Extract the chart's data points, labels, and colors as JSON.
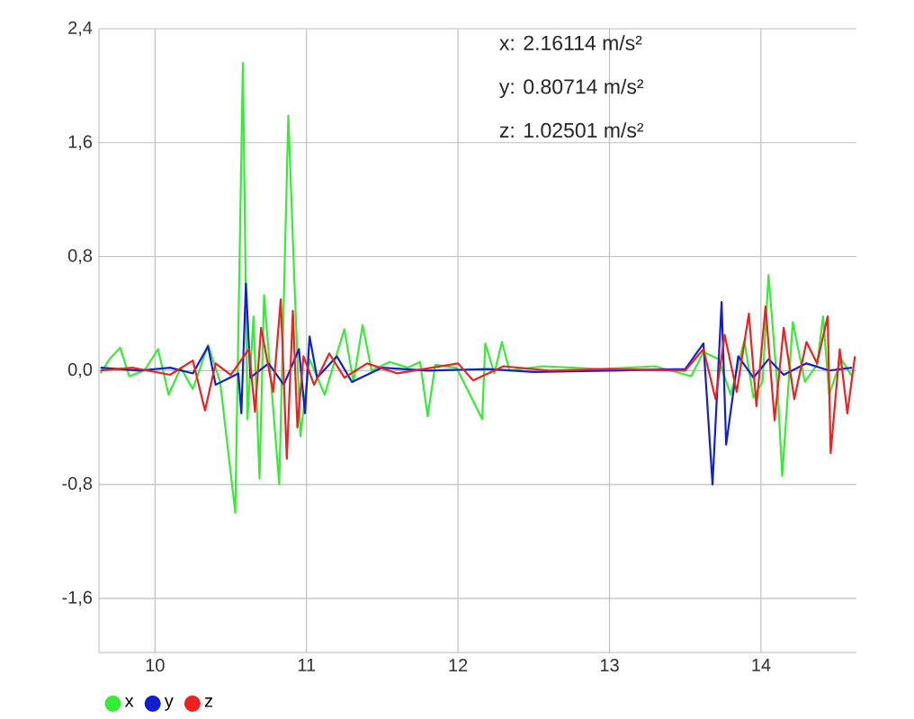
{
  "chart_data": {
    "type": "line",
    "annotations": [
      "x: 2.16114 m/s²",
      "y: 0.80714 m/s²",
      "z: 1.02501 m/s²"
    ],
    "xlim": [
      9.63,
      14.63
    ],
    "ylim": [
      -1.98,
      2.4
    ],
    "xticks": [
      10,
      11,
      12,
      13,
      14
    ],
    "yticks": [
      {
        "value": -1.6,
        "label": "-1,6"
      },
      {
        "value": -0.8,
        "label": "-0,8"
      },
      {
        "value": 0,
        "label": "0,0"
      },
      {
        "value": 0.8,
        "label": "0,8"
      },
      {
        "value": 1.6,
        "label": "1,6"
      },
      {
        "value": 2.4,
        "label": "2,4"
      }
    ],
    "grid": true,
    "legend": "bottom left",
    "series": [
      {
        "name": "x",
        "color": "#33ee33",
        "x": [
          9.64,
          9.7,
          9.77,
          9.83,
          9.93,
          10.02,
          10.09,
          10.17,
          10.25,
          10.35,
          10.43,
          10.53,
          10.58,
          10.61,
          10.65,
          10.69,
          10.72,
          10.76,
          10.82,
          10.88,
          10.92,
          10.96,
          11.02,
          11.12,
          11.19,
          11.25,
          11.31,
          11.37,
          11.43,
          11.55,
          11.67,
          11.75,
          11.8,
          11.85,
          11.99,
          12.16,
          12.18,
          12.24,
          12.29,
          12.34,
          12.56,
          12.95,
          13.3,
          13.54,
          13.62,
          13.72,
          13.8,
          13.89,
          13.95,
          14.01,
          14.05,
          14.11,
          14.14,
          14.21,
          14.29,
          14.37,
          14.41,
          14.45,
          14.53,
          14.6
        ],
        "values": [
          -0.02,
          0.08,
          0.16,
          -0.04,
          0,
          0.15,
          -0.17,
          0.02,
          -0.13,
          0.18,
          -0.08,
          -1.0,
          2.16,
          -0.34,
          0.38,
          -0.76,
          0.53,
          0,
          -0.8,
          1.79,
          0.63,
          -0.46,
          0.08,
          -0.17,
          0.08,
          0.29,
          -0.08,
          0.32,
          0,
          0.06,
          0.02,
          0.06,
          -0.32,
          0.04,
          0.02,
          -0.34,
          0.19,
          -0.02,
          0.2,
          0,
          0.03,
          0.01,
          0.03,
          -0.04,
          0.13,
          0.08,
          -0.17,
          0.21,
          -0.19,
          -0.08,
          0.67,
          -0.13,
          -0.74,
          0.34,
          -0.08,
          0.04,
          0.38,
          -0.17,
          0.08,
          -0.04
        ]
      },
      {
        "name": "y",
        "color": "#1020d0",
        "x": [
          9.64,
          9.9,
          10.1,
          10.25,
          10.35,
          10.4,
          10.55,
          10.57,
          10.6,
          10.63,
          10.75,
          10.85,
          10.95,
          10.99,
          11.02,
          11.07,
          11.2,
          11.3,
          11.5,
          11.8,
          12.2,
          12.5,
          13.0,
          13.5,
          13.62,
          13.68,
          13.74,
          13.77,
          13.85,
          13.95,
          14.05,
          14.15,
          14.3,
          14.45,
          14.6
        ],
        "values": [
          0.02,
          0,
          0.02,
          -0.02,
          0.17,
          -0.1,
          -0.02,
          -0.3,
          0.61,
          -0.05,
          0.05,
          -0.1,
          0.15,
          -0.3,
          0.24,
          -0.05,
          0.1,
          -0.08,
          0.02,
          0,
          0.01,
          -0.01,
          0,
          0.01,
          0.19,
          -0.8,
          0.48,
          -0.52,
          0.1,
          -0.05,
          0.08,
          -0.03,
          0.05,
          0,
          0.02
        ]
      },
      {
        "name": "z",
        "color": "#ee2020",
        "x": [
          9.64,
          9.85,
          10.1,
          10.25,
          10.33,
          10.4,
          10.5,
          10.62,
          10.66,
          10.7,
          10.78,
          10.83,
          10.87,
          10.91,
          10.94,
          10.98,
          11.05,
          11.15,
          11.25,
          11.4,
          11.6,
          12.0,
          12.1,
          12.3,
          12.6,
          13.0,
          13.5,
          13.62,
          13.7,
          13.76,
          13.84,
          13.92,
          13.97,
          14.03,
          14.09,
          14.15,
          14.22,
          14.3,
          14.37,
          14.44,
          14.46,
          14.52,
          14.57,
          14.62
        ],
        "values": [
          0,
          0.02,
          -0.03,
          0.07,
          -0.28,
          0.05,
          -0.03,
          0.15,
          -0.29,
          0.3,
          -0.15,
          0.5,
          -0.62,
          0.42,
          -0.4,
          0.1,
          -0.1,
          0.12,
          -0.05,
          0.05,
          -0.02,
          0.05,
          -0.07,
          0.03,
          0,
          0.01,
          0,
          0.15,
          -0.2,
          0.25,
          -0.15,
          0.4,
          -0.25,
          0.45,
          -0.35,
          0.3,
          -0.2,
          0.2,
          0.05,
          0.38,
          -0.58,
          0.15,
          -0.3,
          0.1
        ]
      }
    ]
  }
}
